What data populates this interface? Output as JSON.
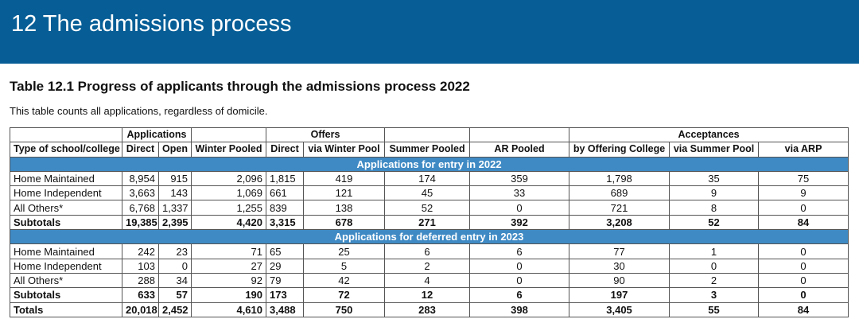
{
  "header": {
    "title": "12 The admissions process"
  },
  "table": {
    "title": "Table 12.1 Progress of applicants through the admissions process 2022",
    "subtitle": "This table counts all applications, regardless of domicile.",
    "group_headers": [
      "Applications",
      "Offers",
      "Acceptances"
    ],
    "columns": [
      "Type of school/college",
      "Direct",
      "Open",
      "Winter Pooled",
      "Direct",
      "via Winter Pool",
      "Summer Pooled",
      "AR Pooled",
      "by Offering College",
      "via Summer Pool",
      "via ARP"
    ],
    "sections": [
      {
        "title": "Applications for entry in 2022",
        "rows": [
          [
            "Home Maintained",
            "8,954",
            "915",
            "2,096",
            "1,815",
            "419",
            "174",
            "359",
            "1,798",
            "35",
            "75"
          ],
          [
            "Home Independent",
            "3,663",
            "143",
            "1,069",
            "661",
            "121",
            "45",
            "33",
            "689",
            "9",
            "9"
          ],
          [
            "All Others*",
            "6,768",
            "1,337",
            "1,255",
            "839",
            "138",
            "52",
            "0",
            "721",
            "8",
            "0"
          ],
          [
            "Subtotals",
            "19,385",
            "2,395",
            "4,420",
            "3,315",
            "678",
            "271",
            "392",
            "3,208",
            "52",
            "84"
          ]
        ]
      },
      {
        "title": "Applications for deferred entry in 2023",
        "rows": [
          [
            "Home Maintained",
            "242",
            "23",
            "71",
            "65",
            "25",
            "6",
            "6",
            "77",
            "1",
            "0"
          ],
          [
            "Home Independent",
            "103",
            "0",
            "27",
            "29",
            "5",
            "2",
            "0",
            "30",
            "0",
            "0"
          ],
          [
            "All Others*",
            "288",
            "34",
            "92",
            "79",
            "42",
            "4",
            "0",
            "90",
            "2",
            "0"
          ],
          [
            "Subtotals",
            "633",
            "57",
            "190",
            "173",
            "72",
            "12",
            "6",
            "197",
            "3",
            "0"
          ]
        ]
      }
    ],
    "totals": [
      "Totals",
      "20,018",
      "2,452",
      "4,610",
      "3,488",
      "750",
      "283",
      "398",
      "3,405",
      "55",
      "84"
    ]
  }
}
